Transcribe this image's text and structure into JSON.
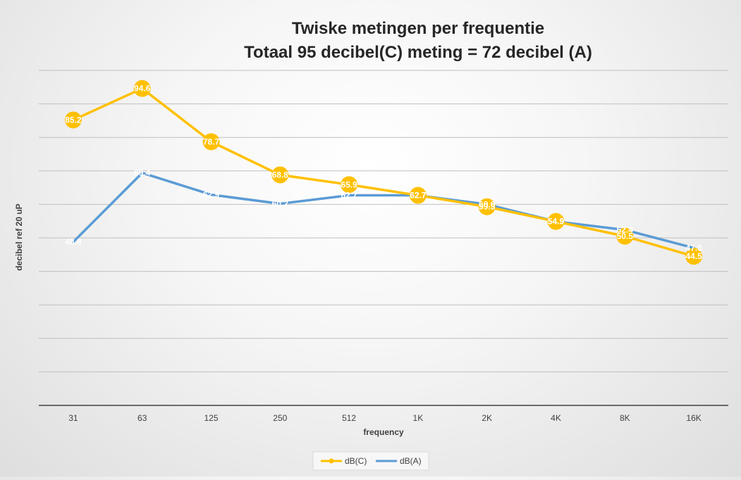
{
  "chart_data": {
    "type": "line",
    "title": "Twiske metingen per frequentie",
    "subtitle": "Totaal 95 decibel(C) meting = 72 decibel (A)",
    "xlabel": "frequency",
    "ylabel": "decibel ref 20 uP",
    "categories": [
      "31",
      "63",
      "125",
      "250",
      "512",
      "1K",
      "2K",
      "4K",
      "8K",
      "16K"
    ],
    "ylim": [
      0,
      100
    ],
    "grid": true,
    "legend_position": "bottom",
    "series": [
      {
        "name": "dB(C)",
        "color": "#FFC000",
        "marker": "circle",
        "values": [
          85.2,
          94.6,
          78.7,
          68.8,
          65.9,
          62.7,
          59.3,
          54.9,
          50.5,
          44.5
        ],
        "labels": [
          "85.2",
          "94.6",
          "78.7",
          "68.8",
          "65.9",
          "62.7",
          "59.3",
          "54.9",
          "50.5",
          "44.5"
        ]
      },
      {
        "name": "dB(A)",
        "color": "#5B9BD5",
        "marker": "none",
        "values": [
          48.8,
          69.4,
          62.9,
          60.2,
          62.7,
          62.7,
          60.0,
          54.9,
          52.4,
          47.0
        ],
        "labels": [
          "48.8",
          "69.4",
          "62.9",
          "60.2",
          "62.7",
          "62.7",
          "60.0",
          "54.9",
          "52.4",
          "47.0"
        ]
      }
    ]
  }
}
